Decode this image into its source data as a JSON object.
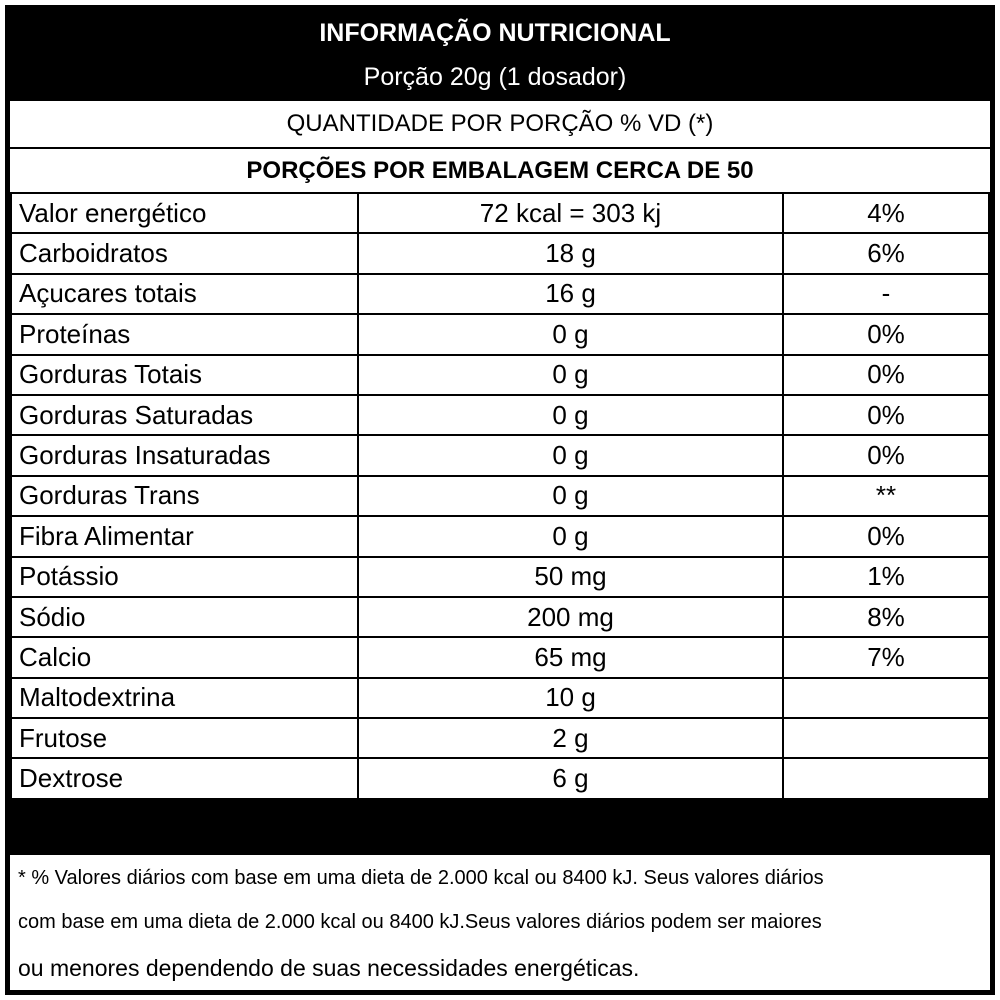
{
  "header": {
    "title": "INFORMAÇÃO NUTRICIONAL",
    "portion": "Porção 20g (1 dosador)"
  },
  "subheader": {
    "quantity_line": "QUANTIDADE POR PORÇÃO % VD (*)",
    "servings_line": "PORÇÕES POR EMBALAGEM CERCA DE 50"
  },
  "rows": [
    {
      "name": "Valor energético",
      "amount": "72 kcal = 303 kj",
      "vd": "4%"
    },
    {
      "name": "Carboidratos",
      "amount": "18 g",
      "vd": "6%"
    },
    {
      "name": "Açucares totais",
      "amount": "16 g",
      "vd": "-"
    },
    {
      "name": "Proteínas",
      "amount": "0 g",
      "vd": "0%"
    },
    {
      "name": "Gorduras Totais",
      "amount": "0 g",
      "vd": "0%"
    },
    {
      "name": "Gorduras Saturadas",
      "amount": "0 g",
      "vd": "0%"
    },
    {
      "name": "Gorduras Insaturadas",
      "amount": "0 g",
      "vd": "0%"
    },
    {
      "name": "Gorduras Trans",
      "amount": "0 g",
      "vd": "**"
    },
    {
      "name": "Fibra Alimentar",
      "amount": "0 g",
      "vd": "0%"
    },
    {
      "name": "Potássio",
      "amount": "50 mg",
      "vd": "1%"
    },
    {
      "name": "Sódio",
      "amount": "200 mg",
      "vd": "8%"
    },
    {
      "name": "Calcio",
      "amount": "65 mg",
      "vd": "7%"
    },
    {
      "name": "Maltodextrina",
      "amount": "10 g",
      "vd": ""
    },
    {
      "name": "Frutose",
      "amount": "2 g",
      "vd": ""
    },
    {
      "name": "Dextrose",
      "amount": "6 g",
      "vd": ""
    }
  ],
  "footnote": {
    "line1": "* % Valores diários com base em uma dieta de 2.000 kcal ou 8400 kJ. Seus valores diários",
    "line2": "com base em uma dieta de 2.000 kcal ou 8400 kJ.Seus valores diários podem ser maiores",
    "line3": "ou menores dependendo de suas necessidades energéticas."
  }
}
